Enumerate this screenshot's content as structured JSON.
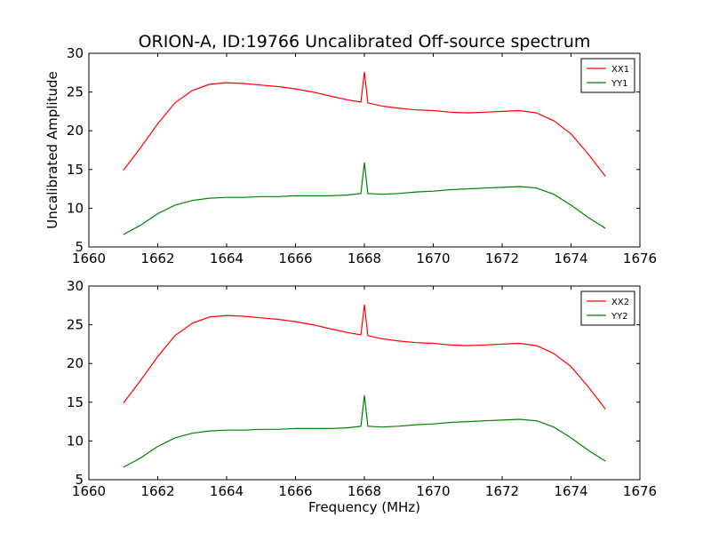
{
  "chart_data": [
    {
      "type": "line",
      "title": "ORION-A, ID:19766 Uncalibrated Off-source spectrum",
      "xlabel": "",
      "ylabel": "Uncalibrated Amplitude",
      "xlim": [
        1660,
        1676
      ],
      "ylim": [
        5,
        30
      ],
      "xticks": [
        "1660",
        "1662",
        "1664",
        "1666",
        "1668",
        "1670",
        "1672",
        "1674",
        "1676"
      ],
      "yticks": [
        "5",
        "10",
        "15",
        "20",
        "25",
        "30"
      ],
      "grid": false,
      "legend_position": "top-right",
      "series": [
        {
          "name": "XX1",
          "color": "#ff0000",
          "x": [
            1661.0,
            1661.5,
            1662.0,
            1662.5,
            1663.0,
            1663.5,
            1664.0,
            1664.5,
            1665.0,
            1665.5,
            1666.0,
            1666.5,
            1667.0,
            1667.5,
            1667.9,
            1668.0,
            1668.1,
            1668.5,
            1669.0,
            1669.5,
            1670.0,
            1670.5,
            1671.0,
            1671.5,
            1672.0,
            1672.5,
            1673.0,
            1673.5,
            1674.0,
            1674.5,
            1675.0
          ],
          "values": [
            14.9,
            17.8,
            20.9,
            23.6,
            25.2,
            26.0,
            26.2,
            26.1,
            25.9,
            25.7,
            25.4,
            25.0,
            24.5,
            24.0,
            23.7,
            27.6,
            23.6,
            23.2,
            22.9,
            22.7,
            22.6,
            22.4,
            22.3,
            22.4,
            22.5,
            22.6,
            22.3,
            21.3,
            19.6,
            17.0,
            14.1
          ]
        },
        {
          "name": "YY1",
          "color": "#008000",
          "x": [
            1661.0,
            1661.5,
            1662.0,
            1662.5,
            1663.0,
            1663.5,
            1664.0,
            1664.5,
            1665.0,
            1665.5,
            1666.0,
            1666.5,
            1667.0,
            1667.5,
            1667.9,
            1668.0,
            1668.1,
            1668.5,
            1669.0,
            1669.5,
            1670.0,
            1670.5,
            1671.0,
            1671.5,
            1672.0,
            1672.5,
            1673.0,
            1673.5,
            1674.0,
            1674.5,
            1675.0
          ],
          "values": [
            6.6,
            7.8,
            9.3,
            10.4,
            11.0,
            11.3,
            11.4,
            11.4,
            11.5,
            11.5,
            11.6,
            11.6,
            11.6,
            11.7,
            11.9,
            15.9,
            11.9,
            11.8,
            11.9,
            12.1,
            12.2,
            12.4,
            12.5,
            12.6,
            12.7,
            12.8,
            12.6,
            11.8,
            10.4,
            8.8,
            7.4
          ]
        }
      ]
    },
    {
      "type": "line",
      "title": "",
      "xlabel": "Frequency (MHz)",
      "ylabel": "",
      "xlim": [
        1660,
        1676
      ],
      "ylim": [
        5,
        30
      ],
      "xticks": [
        "1660",
        "1662",
        "1664",
        "1666",
        "1668",
        "1670",
        "1672",
        "1674",
        "1676"
      ],
      "yticks": [
        "5",
        "10",
        "15",
        "20",
        "25",
        "30"
      ],
      "grid": false,
      "legend_position": "top-right",
      "series": [
        {
          "name": "XX2",
          "color": "#ff0000",
          "x": [
            1661.0,
            1661.5,
            1662.0,
            1662.5,
            1663.0,
            1663.5,
            1664.0,
            1664.5,
            1665.0,
            1665.5,
            1666.0,
            1666.5,
            1667.0,
            1667.5,
            1667.9,
            1668.0,
            1668.1,
            1668.5,
            1669.0,
            1669.5,
            1670.0,
            1670.5,
            1671.0,
            1671.5,
            1672.0,
            1672.5,
            1673.0,
            1673.5,
            1674.0,
            1674.5,
            1675.0
          ],
          "values": [
            14.9,
            17.8,
            20.9,
            23.6,
            25.2,
            26.0,
            26.2,
            26.1,
            25.9,
            25.7,
            25.4,
            25.0,
            24.5,
            24.0,
            23.7,
            27.6,
            23.6,
            23.2,
            22.9,
            22.7,
            22.6,
            22.4,
            22.3,
            22.4,
            22.5,
            22.6,
            22.3,
            21.3,
            19.6,
            17.0,
            14.1
          ]
        },
        {
          "name": "YY2",
          "color": "#008000",
          "x": [
            1661.0,
            1661.5,
            1662.0,
            1662.5,
            1663.0,
            1663.5,
            1664.0,
            1664.5,
            1665.0,
            1665.5,
            1666.0,
            1666.5,
            1667.0,
            1667.5,
            1667.9,
            1668.0,
            1668.1,
            1668.5,
            1669.0,
            1669.5,
            1670.0,
            1670.5,
            1671.0,
            1671.5,
            1672.0,
            1672.5,
            1673.0,
            1673.5,
            1674.0,
            1674.5,
            1675.0
          ],
          "values": [
            6.6,
            7.8,
            9.3,
            10.4,
            11.0,
            11.3,
            11.4,
            11.4,
            11.5,
            11.5,
            11.6,
            11.6,
            11.6,
            11.7,
            11.9,
            15.9,
            11.9,
            11.8,
            11.9,
            12.1,
            12.2,
            12.4,
            12.5,
            12.6,
            12.7,
            12.8,
            12.6,
            11.8,
            10.4,
            8.8,
            7.4
          ]
        }
      ]
    }
  ]
}
